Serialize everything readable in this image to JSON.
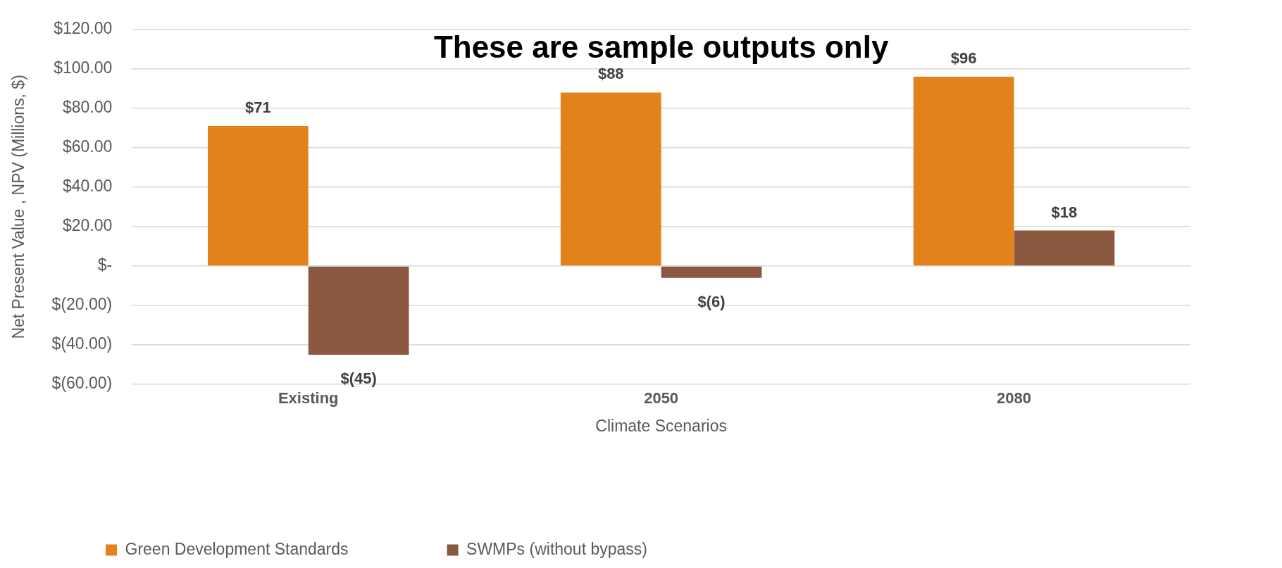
{
  "chart_data": {
    "type": "bar",
    "title": "These are sample outputs only",
    "xlabel": "Climate Scenarios",
    "ylabel": "Net Present Value , NPV (Millions, $)",
    "categories": [
      "Existing",
      "2050",
      "2080"
    ],
    "series": [
      {
        "name": "Green Development Standards",
        "color": "#e3821a",
        "values": [
          71,
          88,
          96
        ],
        "value_labels": [
          "$71",
          "$88",
          "$96"
        ]
      },
      {
        "name": "SWMPs (without bypass)",
        "color": "#8b5840",
        "values": [
          -45,
          -6,
          18
        ],
        "value_labels": [
          "$(45)",
          "$(6)",
          "$18"
        ]
      }
    ],
    "ylim": [
      -60,
      120
    ],
    "yticks": [
      {
        "value": -60,
        "label": "$(60.00)"
      },
      {
        "value": -40,
        "label": "$(40.00)"
      },
      {
        "value": -20,
        "label": "$(20.00)"
      },
      {
        "value": 0,
        "label": "$-"
      },
      {
        "value": 20,
        "label": "$20.00"
      },
      {
        "value": 40,
        "label": "$40.00"
      },
      {
        "value": 60,
        "label": "$60.00"
      },
      {
        "value": 80,
        "label": "$80.00"
      },
      {
        "value": 100,
        "label": "$100.00"
      },
      {
        "value": 120,
        "label": "$120.00"
      }
    ],
    "grid": "y",
    "legend": "bottom left"
  }
}
